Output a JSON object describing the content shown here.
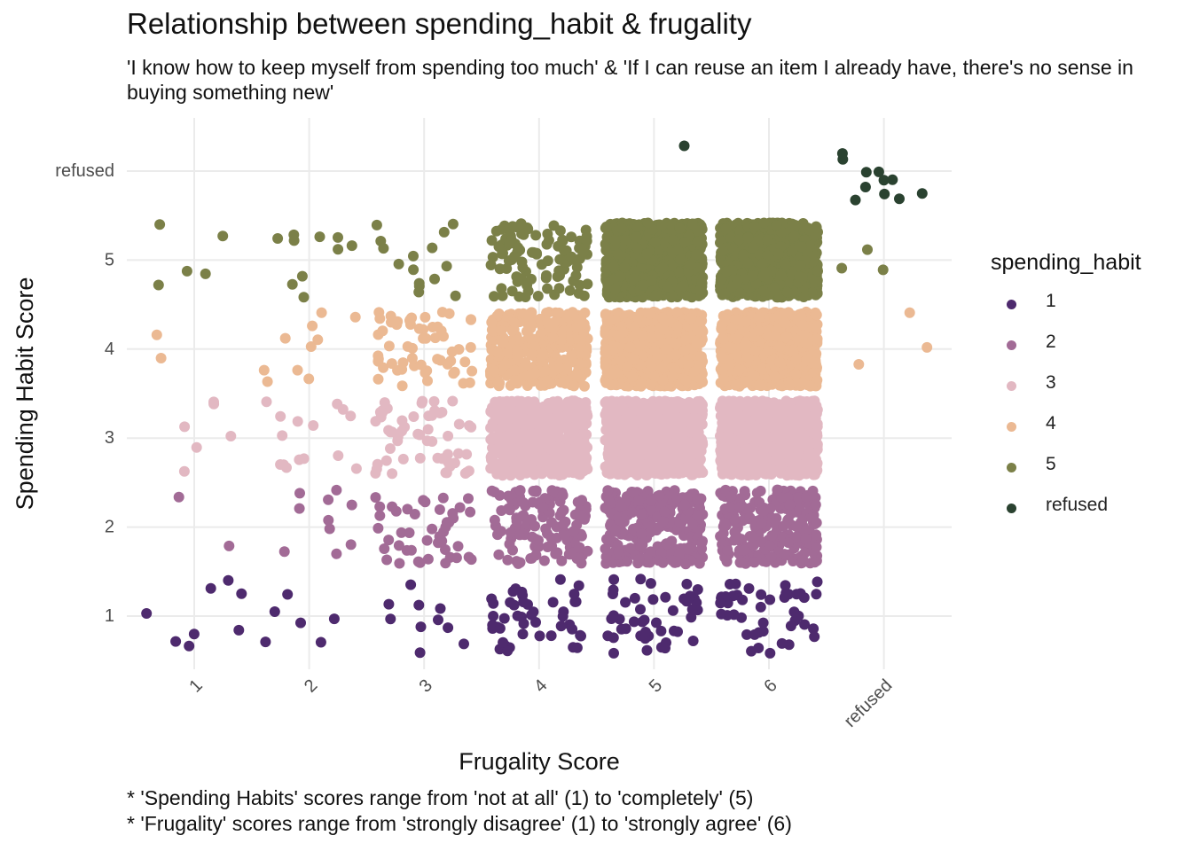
{
  "chart_data": {
    "type": "scatter",
    "title": "Relationship between spending_habit & frugality",
    "subtitle": "'I know how to keep myself from spending too much' & 'If I can reuse an item I already have, there's no sense in buying something new'",
    "xlabel": "Frugality Score",
    "ylabel": "Spending Habit Score",
    "x_categories": [
      "1",
      "2",
      "3",
      "4",
      "5",
      "6",
      "refused"
    ],
    "y_categories": [
      "1",
      "2",
      "3",
      "4",
      "5",
      "refused"
    ],
    "jitter": true,
    "legend_title": "spending_habit",
    "legend_position": "right",
    "grid": true,
    "series": [
      {
        "name": "1",
        "color": "#4e2a6e"
      },
      {
        "name": "2",
        "color": "#a26b96"
      },
      {
        "name": "3",
        "color": "#e2b8c2"
      },
      {
        "name": "4",
        "color": "#ebb993"
      },
      {
        "name": "5",
        "color": "#7b8048"
      },
      {
        "name": "refused",
        "color": "#2a4230"
      }
    ],
    "cell_counts": [
      {
        "x": "1",
        "y": "1",
        "n": 8
      },
      {
        "x": "2",
        "y": "1",
        "n": 6
      },
      {
        "x": "3",
        "y": "1",
        "n": 10
      },
      {
        "x": "4",
        "y": "1",
        "n": 45
      },
      {
        "x": "5",
        "y": "1",
        "n": 45
      },
      {
        "x": "6",
        "y": "1",
        "n": 45
      },
      {
        "x": "1",
        "y": "2",
        "n": 2
      },
      {
        "x": "2",
        "y": "2",
        "n": 10
      },
      {
        "x": "3",
        "y": "2",
        "n": 45
      },
      {
        "x": "4",
        "y": "2",
        "n": 130
      },
      {
        "x": "5",
        "y": "2",
        "n": 260
      },
      {
        "x": "6",
        "y": "2",
        "n": 260
      },
      {
        "x": "1",
        "y": "3",
        "n": 6
      },
      {
        "x": "2",
        "y": "3",
        "n": 15
      },
      {
        "x": "3",
        "y": "3",
        "n": 55
      },
      {
        "x": "4",
        "y": "3",
        "n": 600
      },
      {
        "x": "5",
        "y": "3",
        "n": 900
      },
      {
        "x": "6",
        "y": "3",
        "n": 900
      },
      {
        "x": "1",
        "y": "4",
        "n": 2
      },
      {
        "x": "2",
        "y": "4",
        "n": 10
      },
      {
        "x": "3",
        "y": "4",
        "n": 60
      },
      {
        "x": "4",
        "y": "4",
        "n": 350
      },
      {
        "x": "5",
        "y": "4",
        "n": 900
      },
      {
        "x": "6",
        "y": "4",
        "n": 900
      },
      {
        "x": "1",
        "y": "5",
        "n": 5
      },
      {
        "x": "2",
        "y": "5",
        "n": 10
      },
      {
        "x": "3",
        "y": "5",
        "n": 15
      },
      {
        "x": "4",
        "y": "5",
        "n": 100
      },
      {
        "x": "5",
        "y": "5",
        "n": 900
      },
      {
        "x": "6",
        "y": "5",
        "n": 900
      },
      {
        "x": "refused",
        "y": "4",
        "n": 3
      },
      {
        "x": "refused",
        "y": "5",
        "n": 3
      },
      {
        "x": "5",
        "y": "refused",
        "n": 1
      },
      {
        "x": "refused",
        "y": "refused",
        "n": 11
      }
    ],
    "caption_lines": [
      "* 'Spending Habits' scores range from 'not at all' (1) to 'completely' (5)",
      "* 'Frugality' scores range from 'strongly disagree' (1) to 'strongly agree' (6)"
    ]
  }
}
